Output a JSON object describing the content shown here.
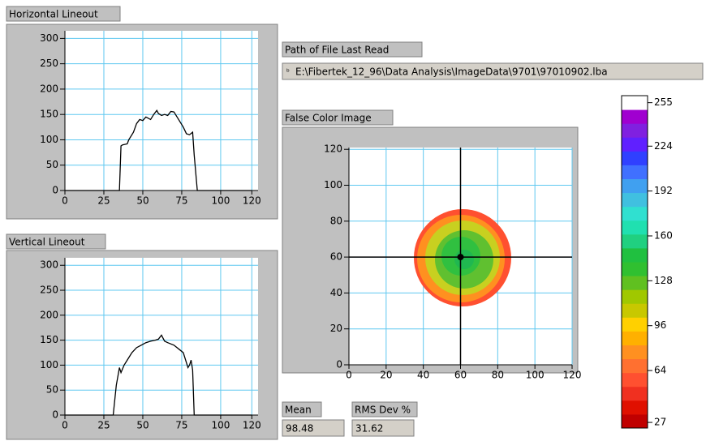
{
  "horizontal_lineout": {
    "type": "line",
    "title": "Horizontal Lineout",
    "color": "#000000",
    "grid_color": "#5fc8f0",
    "xlim": [
      0,
      124
    ],
    "ylim": [
      0,
      315
    ],
    "xticks": [
      0,
      25,
      50,
      75,
      100,
      120
    ],
    "yticks": [
      0,
      50,
      100,
      150,
      200,
      250,
      300
    ],
    "x": [
      0,
      35,
      36,
      37,
      40,
      41,
      44,
      46,
      48,
      50,
      52,
      55,
      57,
      59,
      60,
      62,
      64,
      66,
      68,
      70,
      72,
      74,
      76,
      78,
      80,
      82,
      83,
      85,
      100,
      120
    ],
    "values": [
      0,
      0,
      88,
      90,
      92,
      100,
      115,
      132,
      140,
      138,
      145,
      140,
      150,
      158,
      152,
      148,
      150,
      148,
      156,
      155,
      145,
      135,
      125,
      112,
      110,
      115,
      70,
      0,
      0,
      0
    ]
  },
  "vertical_lineout": {
    "type": "line",
    "title": "Vertical Lineout",
    "color": "#000000",
    "grid_color": "#5fc8f0",
    "xlim": [
      0,
      124
    ],
    "ylim": [
      0,
      315
    ],
    "xticks": [
      0,
      25,
      50,
      75,
      100,
      120
    ],
    "yticks": [
      0,
      50,
      100,
      150,
      200,
      250,
      300
    ],
    "x": [
      0,
      31,
      33,
      35,
      36,
      38,
      40,
      43,
      46,
      49,
      52,
      55,
      58,
      60,
      62,
      64,
      66,
      70,
      74,
      76,
      78,
      79,
      80,
      81,
      82,
      83,
      100,
      120
    ],
    "values": [
      0,
      0,
      60,
      95,
      85,
      100,
      110,
      125,
      135,
      140,
      145,
      148,
      150,
      152,
      160,
      148,
      145,
      140,
      130,
      125,
      105,
      95,
      100,
      110,
      90,
      0,
      0,
      0
    ]
  },
  "path_label": "Path of File Last Read",
  "path_value": "E:\\Fibertek_12_96\\Data Analysis\\ImageData\\9701\\97010902.lba",
  "false_color_image": {
    "type": "image",
    "title": "False Color Image",
    "grid_color": "#5fc8f0",
    "xlim": [
      0,
      120
    ],
    "ylim": [
      0,
      121
    ],
    "xticks": [
      0,
      20,
      40,
      60,
      80,
      100,
      120
    ],
    "yticks": [
      0,
      20,
      40,
      60,
      80,
      100,
      120
    ],
    "cursor": {
      "x": 60,
      "y": 60
    }
  },
  "colorbar": {
    "lim": [
      23,
      260
    ],
    "ticks": [
      255,
      224,
      192,
      160,
      128,
      96,
      64,
      27
    ],
    "colors": [
      "#c00000",
      "#e01000",
      "#f03020",
      "#ff5030",
      "#ff7030",
      "#ff9020",
      "#ffb000",
      "#ffd000",
      "#c8c800",
      "#a0c800",
      "#60c020",
      "#30c030",
      "#20c040",
      "#20d080",
      "#20e0b0",
      "#30e0d0",
      "#40c0e0",
      "#40a0f0",
      "#4070ff",
      "#3040ff",
      "#6020ff",
      "#8020e0",
      "#a000d0",
      "#ffffff"
    ]
  },
  "mean": {
    "label": "Mean",
    "value": "98.48"
  },
  "rms": {
    "label": "RMS Dev %",
    "value": "31.62"
  }
}
